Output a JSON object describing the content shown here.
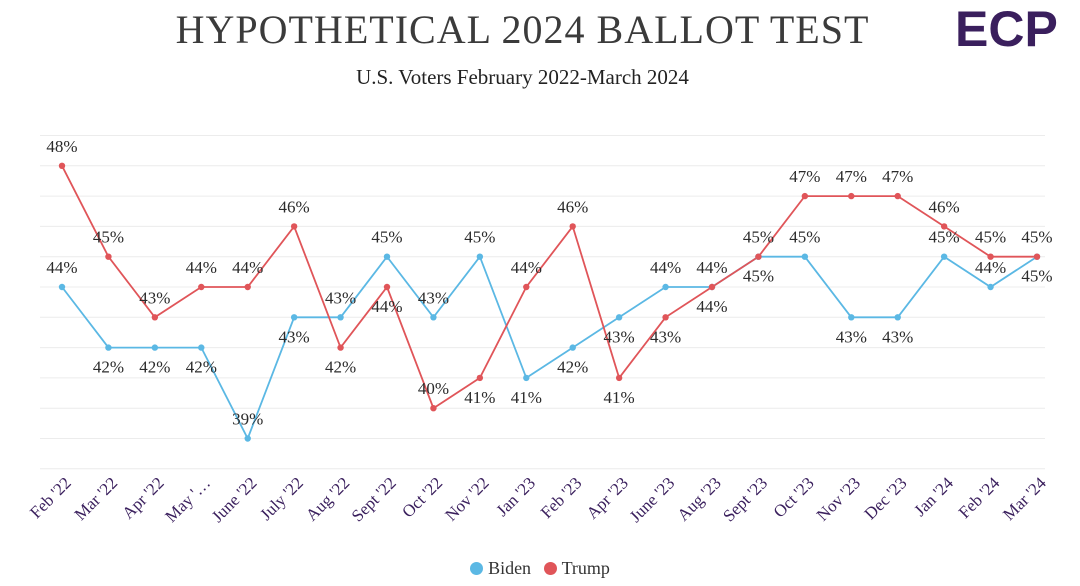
{
  "logo": {
    "text": "ECP",
    "color": "#3a1f5d"
  },
  "chart_data": {
    "type": "line",
    "title": "HYPOTHETICAL 2024 BALLOT TEST",
    "subtitle": "U.S. Voters February 2022-March 2024",
    "categories": [
      "Feb '22",
      "Mar '22",
      "Apr '22",
      "May '…",
      "June '22",
      "July '22",
      "Aug '22",
      "Sept '22",
      "Oct '22",
      "Nov '22",
      "Jan '23",
      "Feb '23",
      "Apr '23",
      "June '23",
      "Aug '23",
      "Sept '23",
      "Oct '23",
      "Nov '23",
      "Dec '23",
      "Jan '24",
      "Feb '24",
      "Mar '24"
    ],
    "series": [
      {
        "name": "Biden",
        "color": "#5bb8e4",
        "values": [
          44,
          42,
          42,
          42,
          39,
          43,
          43,
          45,
          43,
          45,
          41,
          42,
          43,
          44,
          44,
          45,
          45,
          43,
          43,
          45,
          44,
          45
        ]
      },
      {
        "name": "Trump",
        "color": "#e05559",
        "values": [
          48,
          45,
          43,
          44,
          44,
          46,
          42,
          44,
          40,
          41,
          44,
          46,
          41,
          43,
          44,
          45,
          47,
          47,
          47,
          46,
          45,
          45
        ]
      }
    ],
    "value_suffix": "%",
    "ylim": [
      38,
      49
    ],
    "grid": true,
    "legend_position": "bottom"
  }
}
